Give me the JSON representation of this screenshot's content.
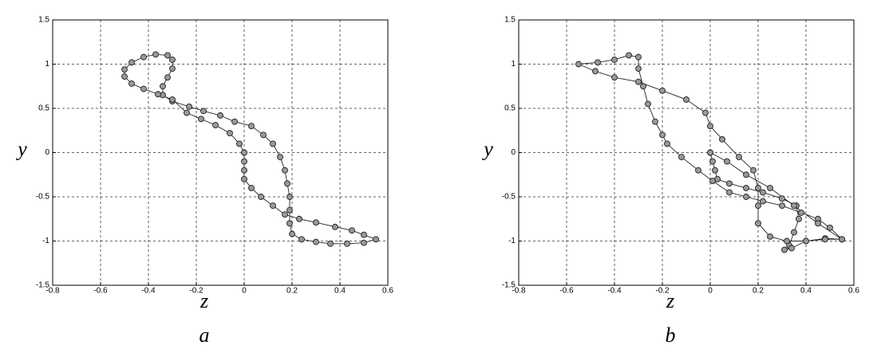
{
  "chart_data": [
    {
      "type": "line",
      "xlabel": "z",
      "ylabel": "y",
      "caption": "a",
      "color": "#999999",
      "edgecolor": "#222222",
      "grid": true,
      "xlim": [
        -0.8,
        0.6
      ],
      "xticks": [
        -0.8,
        -0.6,
        -0.4,
        -0.2,
        0,
        0.2,
        0.4,
        0.6
      ],
      "ylim": [
        -1.5,
        1.5
      ],
      "yticks": [
        -1.5,
        -1,
        -0.5,
        0,
        0.5,
        1,
        1.5
      ],
      "x": [
        0,
        0,
        0,
        0,
        0.03,
        0.07,
        0.12,
        0.17,
        0.23,
        0.3,
        0.38,
        0.45,
        0.5,
        0.55,
        0.5,
        0.43,
        0.36,
        0.3,
        0.24,
        0.2,
        0.19,
        0.19,
        0.19,
        0.18,
        0.17,
        0.15,
        0.12,
        0.08,
        0.03,
        -0.04,
        -0.1,
        -0.17,
        -0.23,
        -0.3,
        -0.34,
        -0.34,
        -0.32,
        -0.3,
        -0.3,
        -0.32,
        -0.37,
        -0.42,
        -0.47,
        -0.5,
        -0.5,
        -0.47,
        -0.42,
        -0.36,
        -0.3,
        -0.24,
        -0.18,
        -0.12,
        -0.06,
        -0.02,
        0
      ],
      "values": [
        0,
        -0.1,
        -0.2,
        -0.3,
        -0.4,
        -0.5,
        -0.6,
        -0.7,
        -0.75,
        -0.79,
        -0.84,
        -0.88,
        -0.93,
        -0.98,
        -1.02,
        -1.03,
        -1.03,
        -1.01,
        -0.98,
        -0.92,
        -0.8,
        -0.65,
        -0.5,
        -0.35,
        -0.2,
        -0.05,
        0.1,
        0.2,
        0.3,
        0.35,
        0.42,
        0.47,
        0.52,
        0.58,
        0.65,
        0.75,
        0.85,
        0.95,
        1.05,
        1.1,
        1.11,
        1.08,
        1.02,
        0.94,
        0.86,
        0.78,
        0.72,
        0.66,
        0.6,
        0.45,
        0.38,
        0.31,
        0.22,
        0.1,
        0
      ]
    },
    {
      "type": "line",
      "xlabel": "z",
      "ylabel": "y",
      "caption": "b",
      "color": "#999999",
      "edgecolor": "#222222",
      "grid": true,
      "xlim": [
        -0.8,
        0.6
      ],
      "xticks": [
        -0.8,
        -0.6,
        -0.4,
        -0.2,
        0,
        0.2,
        0.4,
        0.6
      ],
      "ylim": [
        -1.5,
        1.5
      ],
      "yticks": [
        -1.5,
        -1,
        -0.5,
        0,
        0.5,
        1,
        1.5
      ],
      "x": [
        0,
        0.01,
        0.02,
        0.03,
        0.08,
        0.15,
        0.22,
        0.3,
        0.36,
        0.37,
        0.35,
        0.33,
        0.31,
        0.34,
        0.4,
        0.48,
        0.55,
        0.5,
        0.45,
        0.38,
        0.3,
        0.22,
        0.15,
        0.08,
        0.01,
        -0.05,
        -0.12,
        -0.18,
        -0.2,
        -0.23,
        -0.26,
        -0.28,
        -0.3,
        -0.3,
        -0.34,
        -0.4,
        -0.47,
        -0.55,
        -0.48,
        -0.4,
        -0.3,
        -0.2,
        -0.1,
        -0.02,
        0,
        0.05,
        0.12,
        0.18,
        0.2,
        0.2,
        0.2,
        0.25,
        0.32,
        0.4,
        0.48,
        0.55,
        0.45,
        0.35,
        0.25,
        0.15,
        0.07,
        0
      ],
      "values": [
        0,
        -0.1,
        -0.2,
        -0.3,
        -0.35,
        -0.4,
        -0.45,
        -0.52,
        -0.6,
        -0.75,
        -0.9,
        -1.05,
        -1.1,
        -1.08,
        -1.0,
        -0.97,
        -0.98,
        -0.85,
        -0.75,
        -0.68,
        -0.6,
        -0.55,
        -0.5,
        -0.45,
        -0.32,
        -0.2,
        -0.05,
        0.1,
        0.2,
        0.35,
        0.55,
        0.75,
        0.95,
        1.08,
        1.1,
        1.05,
        1.02,
        1.0,
        0.92,
        0.85,
        0.8,
        0.7,
        0.6,
        0.45,
        0.3,
        0.15,
        -0.05,
        -0.2,
        -0.4,
        -0.6,
        -0.8,
        -0.95,
        -1.0,
        -1.0,
        -0.98,
        -0.98,
        -0.8,
        -0.6,
        -0.4,
        -0.25,
        -0.1,
        0
      ]
    }
  ]
}
